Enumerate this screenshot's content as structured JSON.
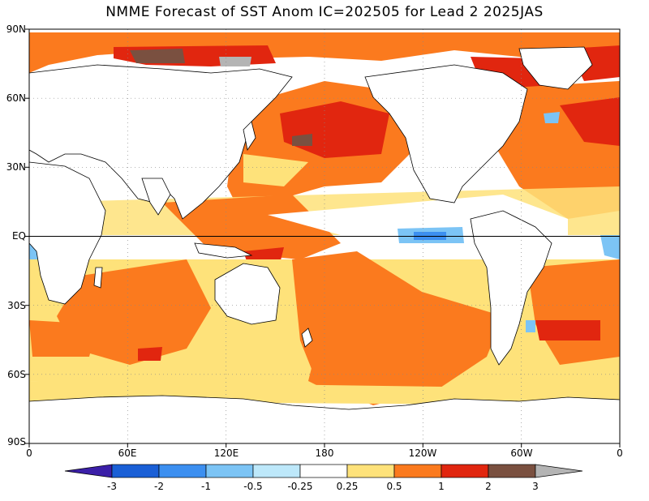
{
  "title": "NMME Forecast of SST Anom IC=202505 for Lead 2 2025JAS",
  "map": {
    "lat_labels": [
      "90N",
      "60N",
      "30N",
      "EQ",
      "30S",
      "60S",
      "90S"
    ],
    "lon_labels": [
      "0",
      "60E",
      "120E",
      "180",
      "120W",
      "60W",
      "0"
    ],
    "lat_range": [
      -90,
      90
    ],
    "lon_range": [
      0,
      360
    ],
    "grid": "dotted",
    "land_fill": "#ffffff",
    "ocean_base": "#ffffff"
  },
  "colorbar": {
    "labels": [
      "-3",
      "-2",
      "-1",
      "-0.5",
      "-0.25",
      "0.25",
      "0.5",
      "1",
      "2",
      "3"
    ],
    "bins": [
      {
        "range": "< -3",
        "color": "#3b1fa8"
      },
      {
        "range": "-3 to -2",
        "color": "#1a5fd6"
      },
      {
        "range": "-2 to -1",
        "color": "#3c8ff0"
      },
      {
        "range": "-1 to -0.5",
        "color": "#7cc4f5"
      },
      {
        "range": "-0.5 to -0.25",
        "color": "#bde8fa"
      },
      {
        "range": "-0.25 to 0.25",
        "color": "#ffffff"
      },
      {
        "range": "0.25 to 0.5",
        "color": "#fee27a"
      },
      {
        "range": "0.5 to 1",
        "color": "#fb7a1e"
      },
      {
        "range": "1 to 2",
        "color": "#e1260f"
      },
      {
        "range": "2 to 3",
        "color": "#7a5040"
      },
      {
        "range": "> 3",
        "color": "#b4b4b4"
      }
    ]
  }
}
